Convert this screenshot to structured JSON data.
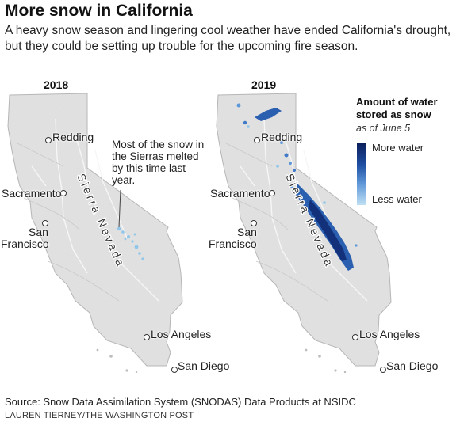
{
  "title": "More snow in California",
  "subtitle": "A heavy snow season and lingering cool weather have ended California's drought, but they could be setting up trouble for the upcoming fire season.",
  "maps": [
    {
      "year": "2018"
    },
    {
      "year": "2019"
    }
  ],
  "cities": {
    "redding": "Redding",
    "sacramento": "Sacramento",
    "san": "San",
    "francisco": "Francisco",
    "los_angeles": "Los Angeles",
    "san_diego": "San Diego"
  },
  "range_label": "Sierra Nevada",
  "annotation": "Most of the snow in the Sierras melted by this time last year.",
  "legend": {
    "title": "Amount of water stored as snow",
    "subtitle": "as of June 5",
    "high": "More water",
    "low": "Less water",
    "colors": [
      "#0b1f5c",
      "#1f4fa3",
      "#5e97d8",
      "#bfe0f3"
    ]
  },
  "source": "Source: Snow Data Assimilation System (SNODAS) Data Products at NSIDC",
  "credit": "LAUREN TIERNEY/THE WASHINGTON POST"
}
